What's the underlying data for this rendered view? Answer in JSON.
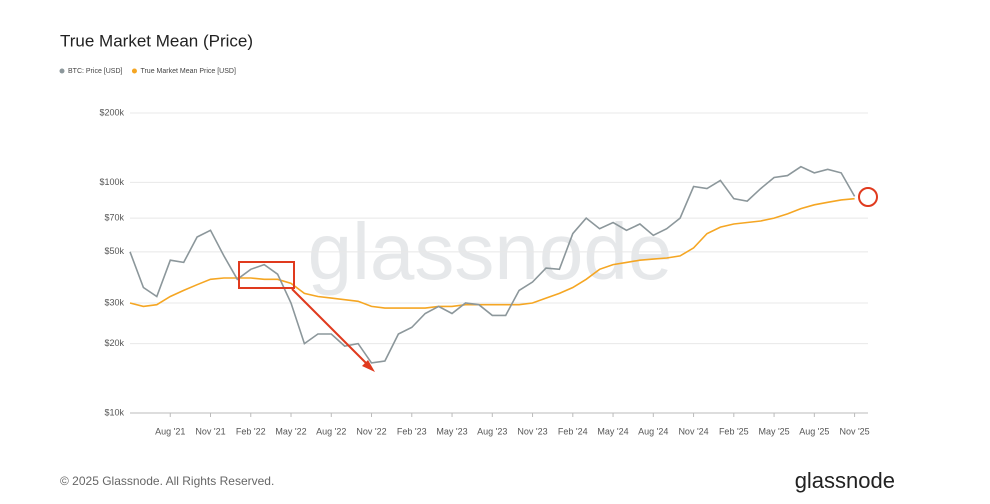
{
  "chart_data": {
    "type": "line",
    "title": "True Market Mean (Price)",
    "watermark": "glassnode",
    "footer": "© 2025 Glassnode. All Rights Reserved.",
    "brand": "glassnode",
    "log_y": true,
    "grid": true,
    "legend": "top-left",
    "x": [
      "2021-05",
      "2021-06",
      "2021-07",
      "2021-08",
      "2021-09",
      "2021-10",
      "2021-11",
      "2021-12",
      "2022-01",
      "2022-02",
      "2022-03",
      "2022-04",
      "2022-05",
      "2022-06",
      "2022-07",
      "2022-08",
      "2022-09",
      "2022-10",
      "2022-11",
      "2022-12",
      "2023-01",
      "2023-02",
      "2023-03",
      "2023-04",
      "2023-05",
      "2023-06",
      "2023-07",
      "2023-08",
      "2023-09",
      "2023-10",
      "2023-11",
      "2023-12",
      "2024-01",
      "2024-02",
      "2024-03",
      "2024-04",
      "2024-05",
      "2024-06",
      "2024-07",
      "2024-08",
      "2024-09",
      "2024-10",
      "2024-11",
      "2024-12",
      "2025-01",
      "2025-02",
      "2025-03",
      "2025-04",
      "2025-05",
      "2025-06",
      "2025-07",
      "2025-08",
      "2025-09",
      "2025-10",
      "2025-11"
    ],
    "xlim": [
      "2021-05",
      "2025-12"
    ],
    "xticks": [
      {
        "value": "2021-08",
        "label": "Aug '21"
      },
      {
        "value": "2021-11",
        "label": "Nov '21"
      },
      {
        "value": "2022-02",
        "label": "Feb '22"
      },
      {
        "value": "2022-05",
        "label": "May '22"
      },
      {
        "value": "2022-08",
        "label": "Aug '22"
      },
      {
        "value": "2022-11",
        "label": "Nov '22"
      },
      {
        "value": "2023-02",
        "label": "Feb '23"
      },
      {
        "value": "2023-05",
        "label": "May '23"
      },
      {
        "value": "2023-08",
        "label": "Aug '23"
      },
      {
        "value": "2023-11",
        "label": "Nov '23"
      },
      {
        "value": "2024-02",
        "label": "Feb '24"
      },
      {
        "value": "2024-05",
        "label": "May '24"
      },
      {
        "value": "2024-08",
        "label": "Aug '24"
      },
      {
        "value": "2024-11",
        "label": "Nov '24"
      },
      {
        "value": "2025-02",
        "label": "Feb '25"
      },
      {
        "value": "2025-05",
        "label": "May '25"
      },
      {
        "value": "2025-08",
        "label": "Aug '25"
      },
      {
        "value": "2025-11",
        "label": "Nov '25"
      }
    ],
    "ylim": [
      10000,
      200000
    ],
    "yticks": [
      {
        "value": 10000,
        "label": "$10k"
      },
      {
        "value": 20000,
        "label": "$20k"
      },
      {
        "value": 30000,
        "label": "$30k"
      },
      {
        "value": 50000,
        "label": "$50k"
      },
      {
        "value": 70000,
        "label": "$70k"
      },
      {
        "value": 100000,
        "label": "$100k"
      },
      {
        "value": 200000,
        "label": "$200k"
      }
    ],
    "series": [
      {
        "name": "BTC: Price [USD]",
        "color": "#8c979b",
        "values": [
          50000,
          35000,
          32000,
          46000,
          45000,
          58000,
          62000,
          48000,
          38000,
          42000,
          44000,
          40000,
          30000,
          20000,
          22000,
          22000,
          19500,
          20000,
          16500,
          16800,
          22000,
          23500,
          27000,
          29000,
          27000,
          30000,
          29500,
          26500,
          26500,
          34000,
          37000,
          42500,
          42000,
          60000,
          70000,
          63000,
          67000,
          62000,
          66000,
          59000,
          63000,
          70000,
          96000,
          94000,
          102000,
          85000,
          83000,
          94000,
          105000,
          107000,
          117000,
          110000,
          114000,
          110000,
          87000
        ]
      },
      {
        "name": "True Market Mean Price [USD]",
        "color": "#f5a623",
        "values": [
          30000,
          29000,
          29500,
          32000,
          34000,
          36000,
          38000,
          38500,
          38500,
          38500,
          38000,
          38000,
          36500,
          33000,
          32000,
          31500,
          31000,
          30500,
          29000,
          28500,
          28500,
          28500,
          28500,
          29000,
          29000,
          29500,
          29500,
          29500,
          29500,
          29500,
          30000,
          31500,
          33000,
          35000,
          38000,
          42000,
          44000,
          45000,
          46000,
          46500,
          47000,
          48000,
          52000,
          60000,
          64000,
          66000,
          67000,
          68000,
          70000,
          73000,
          77000,
          80000,
          82000,
          84000,
          85000
        ]
      }
    ]
  }
}
